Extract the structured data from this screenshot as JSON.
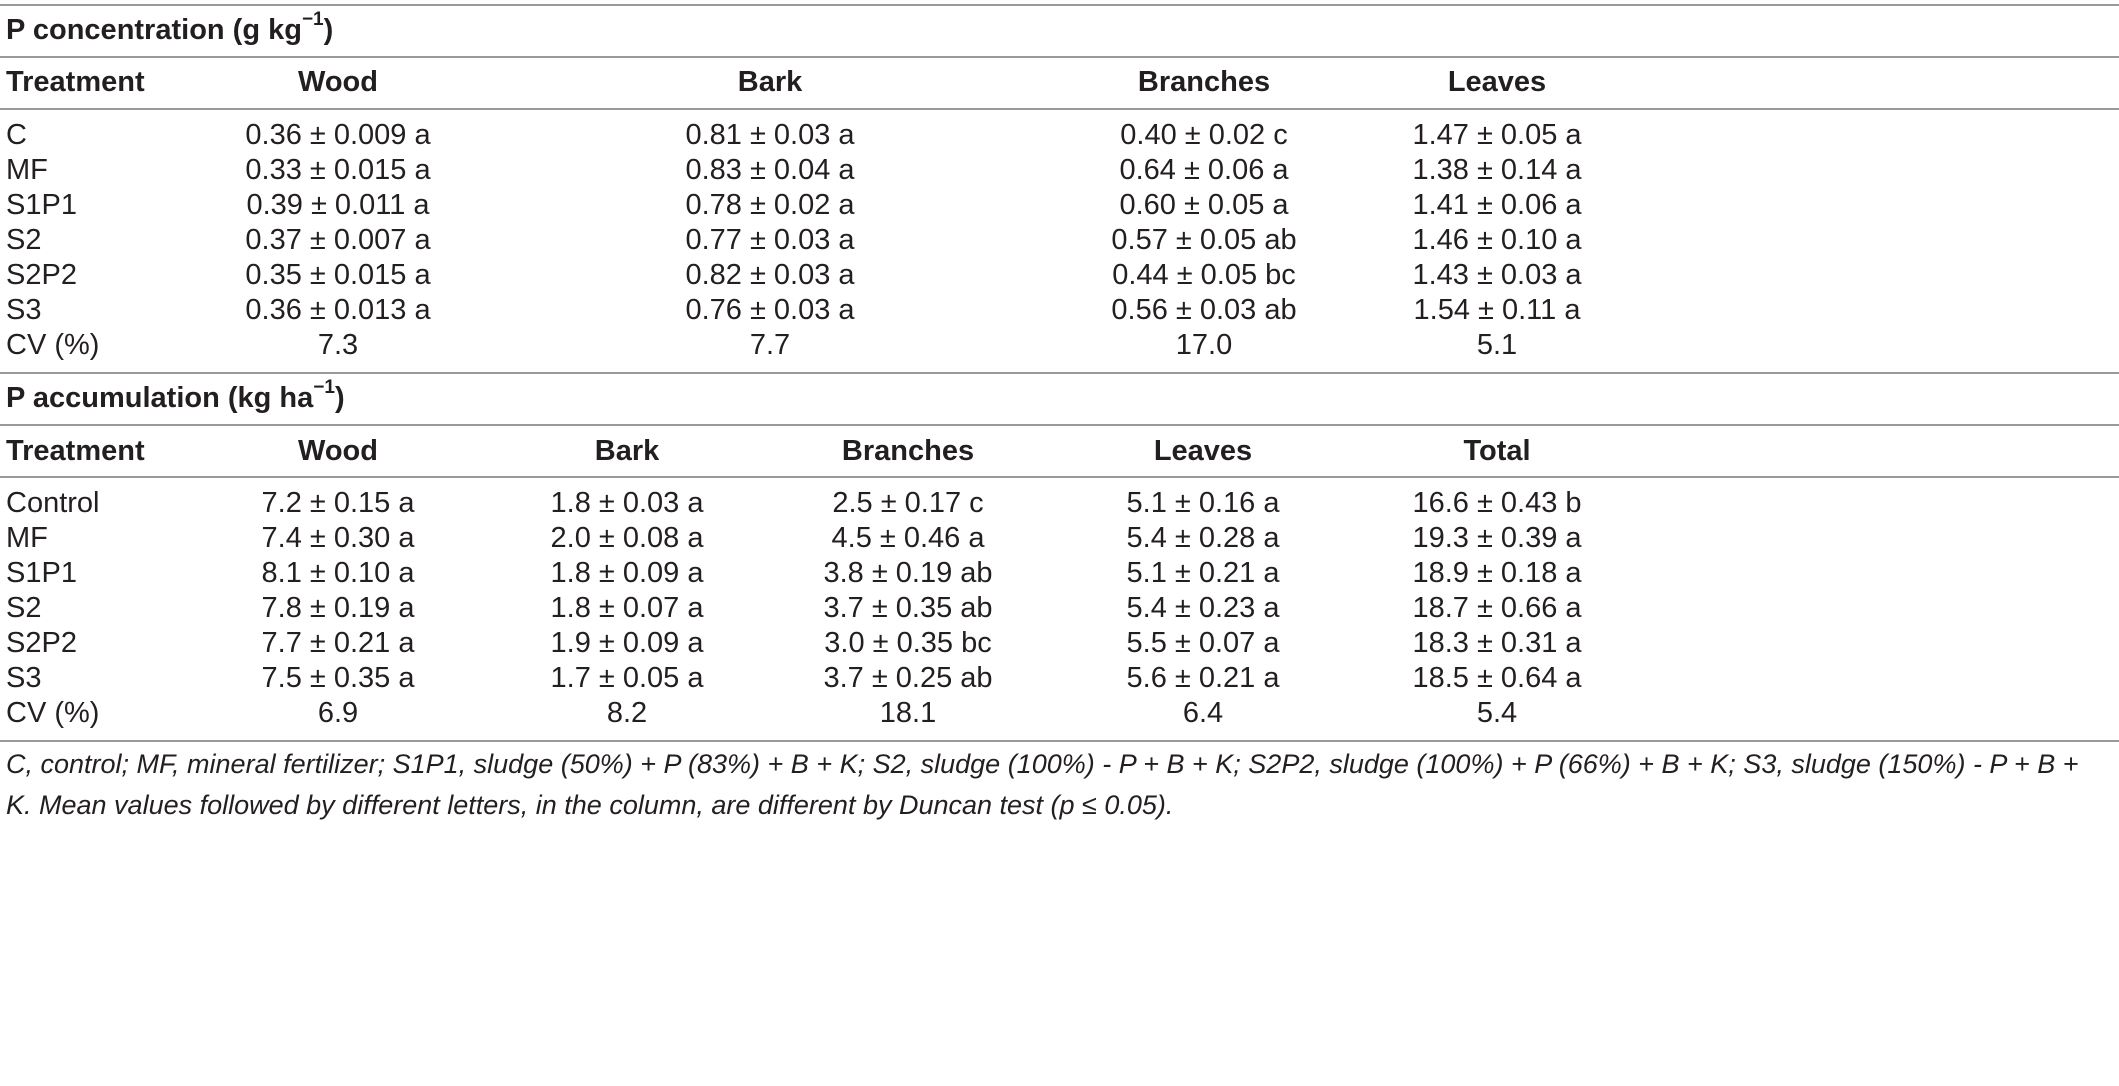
{
  "table1": {
    "title": "P concentration (g kg",
    "title_sup": "−1",
    "title_close": ")",
    "headers": [
      "Treatment",
      "Wood",
      "Bark",
      "Branches",
      "Leaves"
    ],
    "rows": [
      [
        "C",
        "0.36 ± 0.009 a",
        "0.81 ± 0.03 a",
        "0.40 ± 0.02 c",
        "1.47 ± 0.05 a"
      ],
      [
        "MF",
        "0.33 ± 0.015 a",
        "0.83 ± 0.04 a",
        "0.64 ± 0.06 a",
        "1.38 ± 0.14 a"
      ],
      [
        "S1P1",
        "0.39 ± 0.011 a",
        "0.78 ± 0.02 a",
        "0.60 ± 0.05 a",
        "1.41 ± 0.06 a"
      ],
      [
        "S2",
        "0.37 ± 0.007 a",
        "0.77 ± 0.03 a",
        "0.57 ± 0.05 ab",
        "1.46 ± 0.10 a"
      ],
      [
        "S2P2",
        "0.35 ± 0.015 a",
        "0.82 ± 0.03 a",
        "0.44 ± 0.05 bc",
        "1.43 ± 0.03 a"
      ],
      [
        "S3",
        "0.36 ± 0.013 a",
        "0.76 ± 0.03 a",
        "0.56 ± 0.03 ab",
        "1.54 ± 0.11 a"
      ],
      [
        "CV (%)",
        "7.3",
        "7.7",
        "17.0",
        "5.1"
      ]
    ]
  },
  "table2": {
    "title": "P accumulation (kg ha",
    "title_sup": "−1",
    "title_close": ")",
    "headers": [
      "Treatment",
      "Wood",
      "Bark",
      "Branches",
      "Leaves",
      "Total"
    ],
    "rows": [
      [
        "Control",
        "7.2 ± 0.15 a",
        "1.8 ± 0.03 a",
        "2.5 ± 0.17 c",
        "5.1 ± 0.16 a",
        "16.6 ± 0.43 b"
      ],
      [
        "MF",
        "7.4 ± 0.30 a",
        "2.0 ± 0.08 a",
        "4.5 ± 0.46 a",
        "5.4 ± 0.28 a",
        "19.3 ± 0.39 a"
      ],
      [
        "S1P1",
        "8.1 ± 0.10 a",
        "1.8 ± 0.09 a",
        "3.8 ± 0.19 ab",
        "5.1 ± 0.21 a",
        "18.9 ± 0.18 a"
      ],
      [
        "S2",
        "7.8 ± 0.19 a",
        "1.8 ± 0.07 a",
        "3.7 ± 0.35 ab",
        "5.4 ± 0.23 a",
        "18.7 ± 0.66 a"
      ],
      [
        "S2P2",
        "7.7 ± 0.21 a",
        "1.9 ± 0.09 a",
        "3.0 ± 0.35 bc",
        "5.5 ± 0.07 a",
        "18.3 ± 0.31 a"
      ],
      [
        "S3",
        "7.5 ± 0.35 a",
        "1.7 ± 0.05 a",
        "3.7 ± 0.25 ab",
        "5.6 ± 0.21 a",
        "18.5 ± 0.64 a"
      ],
      [
        "CV (%)",
        "6.9",
        "8.2",
        "18.1",
        "6.4",
        "5.4"
      ]
    ]
  },
  "footnote": "C, control; MF, mineral fertilizer; S1P1, sludge (50%) + P (83%) + B + K; S2, sludge (100%) - P + B + K; S2P2, sludge (100%) + P (66%) + B + K; S3, sludge (150%) - P + B + K. Mean values followed by different letters, in the column, are different by Duncan test (p ≤ 0.05)."
}
